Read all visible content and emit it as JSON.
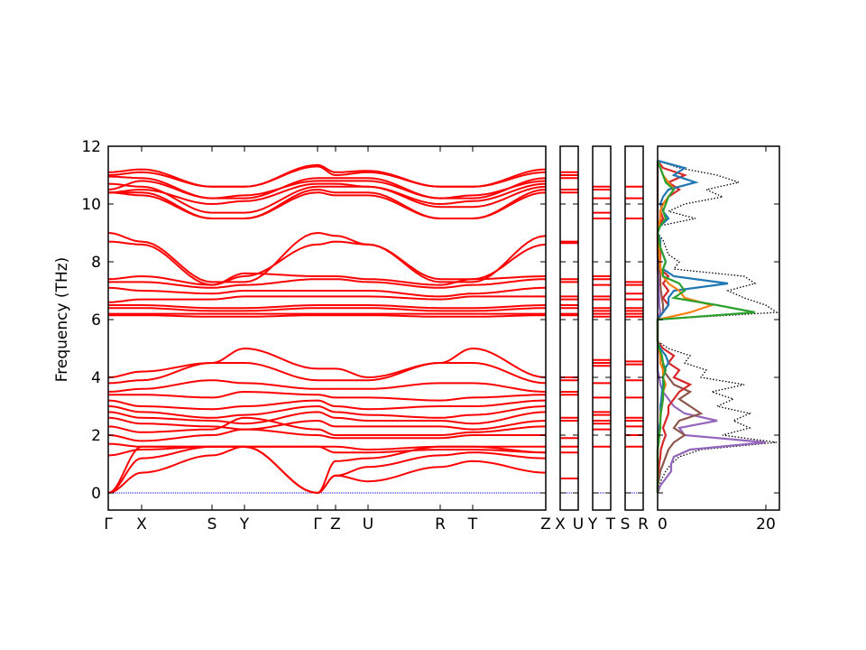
{
  "chart_data": {
    "type": "line",
    "title": "",
    "ylabel": "Frequency (THz)",
    "ylim": [
      -0.6,
      12
    ],
    "yticks": [
      "0",
      "2",
      "4",
      "6",
      "8",
      "10",
      "12"
    ],
    "ytick_values": [
      0,
      2,
      4,
      6,
      8,
      10,
      12
    ],
    "grid": false,
    "band_color": "#ff0000",
    "zero_line_color": "#0000ff",
    "main_path": {
      "labels": [
        "Γ",
        "X",
        "S",
        "Y",
        "Γ",
        "Z",
        "U",
        "R",
        "T",
        "Z"
      ],
      "bands": [
        [
          11.1,
          11.2,
          10.6,
          10.6,
          11.35,
          11.1,
          11.15,
          10.6,
          10.6,
          11.2
        ],
        [
          11.0,
          11.1,
          10.6,
          10.6,
          11.3,
          11.0,
          11.1,
          10.6,
          10.6,
          11.1
        ],
        [
          10.95,
          10.9,
          10.2,
          10.2,
          10.9,
          10.9,
          10.9,
          10.2,
          10.2,
          10.9
        ],
        [
          10.5,
          10.8,
          10.2,
          10.3,
          10.8,
          10.8,
          10.8,
          10.2,
          10.3,
          10.8
        ],
        [
          10.4,
          10.4,
          9.5,
          9.5,
          10.5,
          10.4,
          10.4,
          9.5,
          9.5,
          10.5
        ],
        [
          10.4,
          10.3,
          9.5,
          9.5,
          10.4,
          10.3,
          10.3,
          9.5,
          9.5,
          10.4
        ],
        [
          10.7,
          10.6,
          9.7,
          9.7,
          10.6,
          10.6,
          10.6,
          9.9,
          9.9,
          10.6
        ],
        [
          10.4,
          10.5,
          10.0,
          10.1,
          10.7,
          10.7,
          10.6,
          10.0,
          10.1,
          10.7
        ],
        [
          9.0,
          8.7,
          7.3,
          7.3,
          9.0,
          8.9,
          8.6,
          7.3,
          7.3,
          8.9
        ],
        [
          8.7,
          8.6,
          7.2,
          7.5,
          8.6,
          8.7,
          8.6,
          7.4,
          7.4,
          8.6
        ],
        [
          7.4,
          7.5,
          7.2,
          7.6,
          7.5,
          7.5,
          7.4,
          7.2,
          7.4,
          7.5
        ],
        [
          7.3,
          7.3,
          7.1,
          7.2,
          7.4,
          7.4,
          7.3,
          7.1,
          7.2,
          7.4
        ],
        [
          7.1,
          7.0,
          6.9,
          7.0,
          7.0,
          7.0,
          7.0,
          6.8,
          6.9,
          7.1
        ],
        [
          6.6,
          6.7,
          6.7,
          6.8,
          6.8,
          6.8,
          6.8,
          6.7,
          6.8,
          6.8
        ],
        [
          6.5,
          6.5,
          6.4,
          6.4,
          6.5,
          6.5,
          6.5,
          6.4,
          6.4,
          6.5
        ],
        [
          6.4,
          6.4,
          6.3,
          6.3,
          6.4,
          6.4,
          6.4,
          6.3,
          6.3,
          6.4
        ],
        [
          6.2,
          6.2,
          6.2,
          6.2,
          6.2,
          6.2,
          6.2,
          6.2,
          6.2,
          6.2
        ],
        [
          6.15,
          6.15,
          6.1,
          6.1,
          6.15,
          6.15,
          6.15,
          6.1,
          6.1,
          6.15
        ],
        [
          4.0,
          4.2,
          4.5,
          5.0,
          4.3,
          4.3,
          4.0,
          4.5,
          5.0,
          4.0
        ],
        [
          3.8,
          3.9,
          4.5,
          4.5,
          3.9,
          3.9,
          3.9,
          4.5,
          4.5,
          3.8
        ],
        [
          3.5,
          3.6,
          3.9,
          3.8,
          3.6,
          3.6,
          3.6,
          3.8,
          3.8,
          3.5
        ],
        [
          3.4,
          3.4,
          3.3,
          3.5,
          3.4,
          3.3,
          3.3,
          3.2,
          3.3,
          3.4
        ],
        [
          3.2,
          3.0,
          2.9,
          3.0,
          3.2,
          3.0,
          2.9,
          3.0,
          3.0,
          3.2
        ],
        [
          3.0,
          2.8,
          2.6,
          2.7,
          3.0,
          2.8,
          2.7,
          2.6,
          2.7,
          3.0
        ],
        [
          2.8,
          2.6,
          2.5,
          2.4,
          2.8,
          2.6,
          2.5,
          2.5,
          2.4,
          2.8
        ],
        [
          2.6,
          2.4,
          2.3,
          2.2,
          2.5,
          2.3,
          2.3,
          2.3,
          2.2,
          2.5
        ],
        [
          2.3,
          2.1,
          2.2,
          2.6,
          2.2,
          2.0,
          2.0,
          2.0,
          2.1,
          2.3
        ],
        [
          2.0,
          1.8,
          2.0,
          2.2,
          2.0,
          1.9,
          1.9,
          1.9,
          2.0,
          2.0
        ],
        [
          1.7,
          1.6,
          1.6,
          1.6,
          1.6,
          1.6,
          1.5,
          1.6,
          1.6,
          1.6
        ],
        [
          1.3,
          1.5,
          1.6,
          1.6,
          1.6,
          1.4,
          1.4,
          1.5,
          1.5,
          1.4
        ],
        [
          0,
          1.6,
          1.6,
          1.6,
          0,
          1.1,
          1.2,
          1.6,
          1.6,
          1.4
        ],
        [
          0,
          1.2,
          1.6,
          1.6,
          0,
          0.6,
          0.9,
          1.3,
          1.4,
          1.2
        ],
        [
          0,
          0.7,
          1.3,
          1.6,
          0,
          0.6,
          0.4,
          0.9,
          1.1,
          0.7
        ]
      ]
    },
    "short_paths": [
      {
        "labels": [
          "X",
          "U"
        ],
        "bands": [
          11.1,
          11.0,
          10.9,
          10.5,
          10.4,
          8.7,
          8.65,
          7.4,
          7.3,
          6.8,
          6.7,
          6.5,
          6.4,
          6.2,
          6.15,
          4.0,
          3.9,
          3.5,
          3.4,
          2.6,
          2.5,
          1.9,
          1.6,
          1.4,
          0.5
        ]
      },
      {
        "labels": [
          "Y",
          "T"
        ],
        "bands": [
          10.6,
          10.5,
          10.2,
          9.7,
          9.5,
          7.5,
          7.4,
          7.2,
          6.8,
          6.7,
          6.4,
          6.3,
          6.2,
          6.1,
          4.6,
          4.5,
          4.4,
          3.8,
          3.3,
          2.8,
          2.7,
          2.5,
          2.4,
          2.2,
          1.6
        ]
      },
      {
        "labels": [
          "S",
          "R"
        ],
        "bands": [
          10.6,
          10.2,
          9.5,
          7.3,
          7.2,
          6.9,
          6.7,
          6.4,
          6.3,
          6.2,
          6.1,
          4.55,
          4.45,
          3.9,
          3.3,
          2.6,
          2.5,
          2.3,
          2.0,
          1.6
        ]
      }
    ],
    "dos": {
      "xlim": [
        0,
        22.5
      ],
      "xticks": [
        "0",
        "20"
      ],
      "xtick_values": [
        0,
        20
      ],
      "freq_step": 0.25,
      "total": {
        "color": "#000000",
        "values": [
          0,
          0.3,
          0.8,
          1.5,
          2.5,
          4,
          8,
          22,
          12,
          17,
          14,
          17,
          11,
          14,
          10,
          16,
          8,
          9,
          5,
          6,
          2,
          0,
          0,
          0,
          0,
          22,
          20,
          16,
          13,
          18,
          16,
          3,
          4,
          2,
          1.5,
          1,
          0,
          0.5,
          7,
          2,
          5,
          12,
          9,
          15,
          11,
          4,
          0
        ]
      },
      "partials": [
        {
          "color": "#9467bd",
          "values": [
            0,
            0.5,
            1.5,
            2.5,
            2.5,
            3,
            6,
            20,
            5,
            4,
            11,
            5,
            3,
            2,
            1,
            0.5,
            0.3,
            0,
            0,
            0,
            0,
            0,
            0,
            0,
            0,
            0.5,
            0.3,
            0.3,
            0.2,
            0.2,
            0.1,
            0,
            0,
            0,
            0,
            0,
            0,
            0,
            0,
            0,
            0,
            0,
            0,
            0,
            0,
            0,
            0
          ]
        },
        {
          "color": "#8c564b",
          "values": [
            0,
            0,
            0.3,
            0.5,
            1,
            1.5,
            2,
            3,
            5,
            3,
            4,
            8,
            6,
            4,
            6,
            3,
            2,
            1,
            1,
            0.5,
            0.3,
            0,
            0,
            0,
            0,
            1,
            1,
            0.8,
            0.6,
            0.5,
            0.5,
            0.3,
            0.2,
            0,
            0,
            0,
            0,
            0,
            0,
            0,
            0,
            0,
            0,
            0,
            0,
            0,
            0
          ]
        },
        {
          "color": "#d62728",
          "values": [
            0,
            0,
            0,
            0.2,
            0.3,
            0.5,
            0.6,
            1,
            1.5,
            1,
            1.5,
            2,
            2,
            3,
            4,
            6,
            3,
            4,
            2,
            3,
            1,
            0,
            0,
            0,
            0,
            1,
            2,
            1,
            2,
            1,
            2,
            0.5,
            0.5,
            0.5,
            0.3,
            0,
            0,
            0.2,
            1,
            0.5,
            1,
            2,
            4,
            2,
            5,
            1,
            0
          ]
        },
        {
          "color": "#1f77b4",
          "values": [
            0,
            0,
            0,
            0,
            0,
            0,
            0,
            0.2,
            0.3,
            0.3,
            0.5,
            0.5,
            0.5,
            0.7,
            0.8,
            1,
            1,
            1.2,
            2,
            1.5,
            0.5,
            0,
            0,
            0,
            0,
            1,
            2,
            2,
            3,
            13,
            3,
            1,
            1.5,
            1,
            0.5,
            0.5,
            0,
            0.5,
            2,
            1,
            0.5,
            1,
            2,
            7,
            3,
            5,
            0
          ]
        },
        {
          "color": "#ff7f0e",
          "values": [
            0,
            0,
            0,
            0,
            0,
            0,
            0,
            0.2,
            0.3,
            0.5,
            0.5,
            0.5,
            0.8,
            1,
            1,
            1.5,
            1,
            1,
            0.5,
            0.5,
            0.2,
            0,
            0,
            0,
            0,
            6,
            10,
            5,
            4,
            2,
            1,
            0.5,
            0.5,
            0.3,
            0.2,
            0.1,
            0,
            0.2,
            0.5,
            0.5,
            1,
            2,
            3,
            2,
            1,
            0.5,
            0
          ]
        },
        {
          "color": "#2ca02c",
          "values": [
            0,
            0,
            0,
            0,
            0,
            0,
            0,
            0.2,
            0.3,
            0.5,
            0.5,
            0.6,
            0.8,
            1,
            1,
            1.2,
            1,
            1.5,
            1,
            0.8,
            0.3,
            0,
            0,
            0,
            0,
            18,
            11,
            3,
            5,
            4,
            1,
            1,
            1.5,
            1,
            0.5,
            0.3,
            0,
            0.5,
            1.5,
            1,
            1.5,
            2,
            3,
            1.5,
            1,
            0.5,
            0
          ]
        }
      ]
    }
  }
}
